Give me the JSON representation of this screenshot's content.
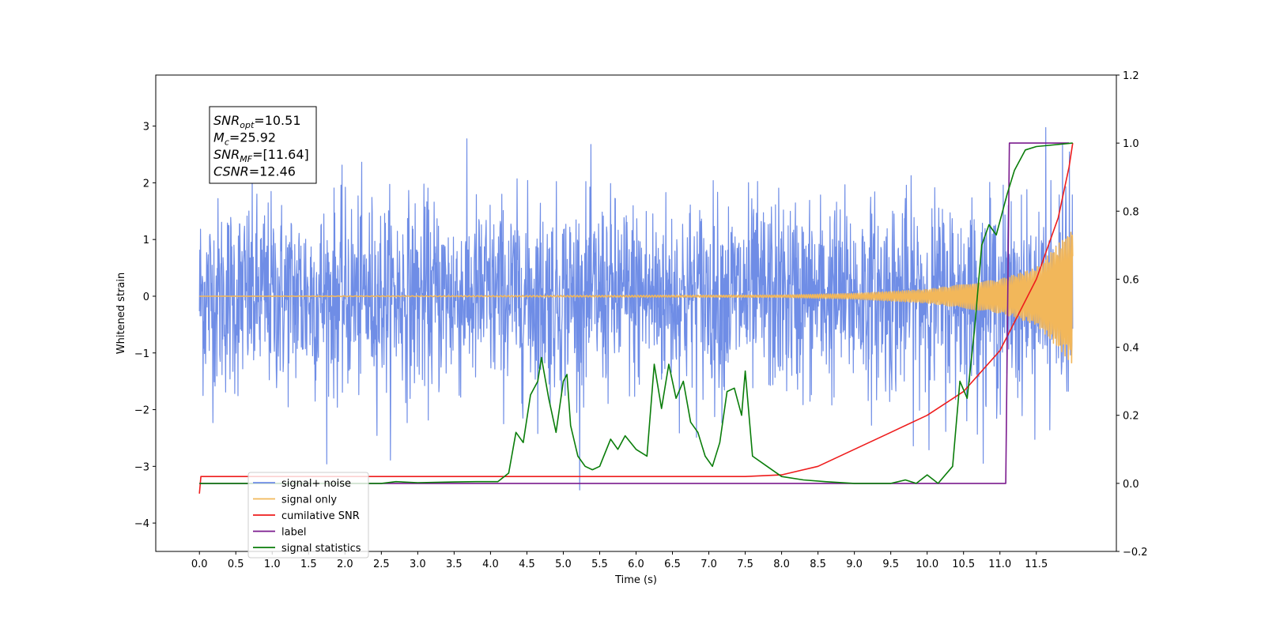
{
  "chart_data": {
    "type": "line",
    "xlabel": "Time (s)",
    "ylabel_left": "Whitened strain",
    "ylabel_right": "",
    "xlim": [
      -0.6,
      12.6
    ],
    "ylim_left": [
      -4.5,
      3.9
    ],
    "ylim_right": [
      -0.2,
      1.2
    ],
    "x_ticks": [
      0.0,
      0.5,
      1.0,
      1.5,
      2.0,
      2.5,
      3.0,
      3.5,
      4.0,
      4.5,
      5.0,
      5.5,
      6.0,
      6.5,
      7.0,
      7.5,
      8.0,
      8.5,
      9.0,
      9.5,
      10.0,
      10.5,
      11.0,
      11.5
    ],
    "x_tick_labels": [
      "0.0",
      "0.5",
      "1.0",
      "1.5",
      "2.0",
      "2.5",
      "3.0",
      "3.5",
      "4.0",
      "4.5",
      "5.0",
      "5.5",
      "6.0",
      "6.5",
      "7.0",
      "7.5",
      "8.0",
      "8.5",
      "9.0",
      "9.5",
      "10.0",
      "10.5",
      "11.0",
      "11.5"
    ],
    "y_ticks_left": [
      -4,
      -3,
      -2,
      -1,
      0,
      1,
      2,
      3
    ],
    "y_tick_labels_left": [
      "−4",
      "−3",
      "−2",
      "−1",
      "0",
      "1",
      "2",
      "3"
    ],
    "y_ticks_right": [
      -0.2,
      0.0,
      0.2,
      0.4,
      0.6,
      0.8,
      1.0,
      1.2
    ],
    "y_tick_labels_right": [
      "−0.2",
      "0.0",
      "0.2",
      "0.4",
      "0.6",
      "0.8",
      "1.0",
      "1.2"
    ],
    "grid": false,
    "legend_position": "bottom-left",
    "annotation": {
      "lines": [
        {
          "main": "SNR",
          "sub": "opt",
          "rest": "=10.51"
        },
        {
          "main": "M",
          "sub": "c",
          "rest": "=25.92"
        },
        {
          "main": "SNR",
          "sub": "MF",
          "rest": "=[11.64]"
        },
        {
          "main": "CSNR",
          "sub": "",
          "rest": "=12.46"
        }
      ]
    },
    "series": [
      {
        "name": "signal+ noise",
        "color": "#6f8de6",
        "axis": "left",
        "kind": "noise",
        "x_range": [
          0.0,
          12.0
        ],
        "std": 0.85,
        "envelope_at": 12.0,
        "envelope_amp": 1.2
      },
      {
        "name": "signal only",
        "color": "#f2b75a",
        "axis": "left",
        "kind": "chirp",
        "x_range": [
          0.0,
          12.0
        ],
        "amp_points": [
          [
            0,
            0.0
          ],
          [
            8,
            0.02
          ],
          [
            9,
            0.05
          ],
          [
            10,
            0.12
          ],
          [
            11,
            0.3
          ],
          [
            11.5,
            0.5
          ],
          [
            12,
            1.2
          ]
        ]
      },
      {
        "name": "cumilative SNR",
        "color": "#ee1c1c",
        "axis": "right",
        "points": [
          [
            0,
            -0.03
          ],
          [
            0.02,
            0.02
          ],
          [
            7.5,
            0.02
          ],
          [
            8.0,
            0.025
          ],
          [
            8.5,
            0.05
          ],
          [
            9.0,
            0.1
          ],
          [
            9.5,
            0.15
          ],
          [
            10.0,
            0.2
          ],
          [
            10.5,
            0.27
          ],
          [
            11.0,
            0.39
          ],
          [
            11.5,
            0.6
          ],
          [
            11.8,
            0.78
          ],
          [
            11.95,
            0.93
          ],
          [
            12.0,
            1.0
          ]
        ]
      },
      {
        "name": "label",
        "color": "#7b1b8e",
        "axis": "right",
        "points": [
          [
            0,
            0.0
          ],
          [
            11.08,
            0.0
          ],
          [
            11.13,
            1.0
          ],
          [
            11.95,
            1.0
          ]
        ]
      },
      {
        "name": "signal statistics",
        "color": "#0a7d0a",
        "axis": "right",
        "points": [
          [
            0,
            0.0
          ],
          [
            2.5,
            0.0
          ],
          [
            2.7,
            0.005
          ],
          [
            3.0,
            0.002
          ],
          [
            3.5,
            0.004
          ],
          [
            3.8,
            0.005
          ],
          [
            4.1,
            0.005
          ],
          [
            4.25,
            0.03
          ],
          [
            4.35,
            0.15
          ],
          [
            4.45,
            0.12
          ],
          [
            4.55,
            0.26
          ],
          [
            4.65,
            0.3
          ],
          [
            4.7,
            0.37
          ],
          [
            4.8,
            0.25
          ],
          [
            4.9,
            0.15
          ],
          [
            5.0,
            0.3
          ],
          [
            5.05,
            0.32
          ],
          [
            5.1,
            0.17
          ],
          [
            5.2,
            0.08
          ],
          [
            5.3,
            0.05
          ],
          [
            5.4,
            0.04
          ],
          [
            5.5,
            0.05
          ],
          [
            5.65,
            0.13
          ],
          [
            5.75,
            0.1
          ],
          [
            5.85,
            0.14
          ],
          [
            6.0,
            0.1
          ],
          [
            6.15,
            0.08
          ],
          [
            6.25,
            0.35
          ],
          [
            6.35,
            0.22
          ],
          [
            6.45,
            0.35
          ],
          [
            6.55,
            0.25
          ],
          [
            6.65,
            0.3
          ],
          [
            6.75,
            0.18
          ],
          [
            6.85,
            0.15
          ],
          [
            6.95,
            0.08
          ],
          [
            7.05,
            0.05
          ],
          [
            7.15,
            0.12
          ],
          [
            7.25,
            0.27
          ],
          [
            7.35,
            0.28
          ],
          [
            7.45,
            0.2
          ],
          [
            7.5,
            0.33
          ],
          [
            7.6,
            0.08
          ],
          [
            7.8,
            0.05
          ],
          [
            8.0,
            0.02
          ],
          [
            8.3,
            0.01
          ],
          [
            8.6,
            0.005
          ],
          [
            9.0,
            0.0
          ],
          [
            9.5,
            0.0
          ],
          [
            9.7,
            0.01
          ],
          [
            9.85,
            0.0
          ],
          [
            10.0,
            0.025
          ],
          [
            10.15,
            0.0
          ],
          [
            10.35,
            0.05
          ],
          [
            10.45,
            0.3
          ],
          [
            10.55,
            0.25
          ],
          [
            10.65,
            0.45
          ],
          [
            10.75,
            0.7
          ],
          [
            10.85,
            0.76
          ],
          [
            10.95,
            0.73
          ],
          [
            11.1,
            0.85
          ],
          [
            11.2,
            0.92
          ],
          [
            11.35,
            0.98
          ],
          [
            11.5,
            0.99
          ],
          [
            12.0,
            1.0
          ]
        ]
      }
    ]
  }
}
